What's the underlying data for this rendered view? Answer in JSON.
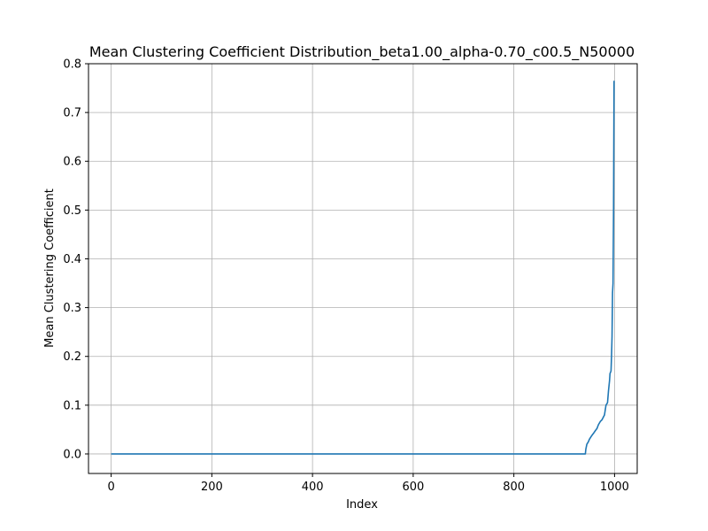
{
  "chart_data": {
    "type": "line",
    "title": "Mean Clustering Coefficient Distribution_beta1.00_alpha-0.70_c00.5_N50000",
    "xlabel": "Index",
    "ylabel": "Mean Clustering Coefficient",
    "xlim": [
      -45,
      1045
    ],
    "ylim": [
      -0.04,
      0.8
    ],
    "xticks": [
      0,
      200,
      400,
      600,
      800,
      1000
    ],
    "yticks": [
      0.0,
      0.1,
      0.2,
      0.3,
      0.4,
      0.5,
      0.6,
      0.7,
      0.8
    ],
    "xtick_labels": [
      "0",
      "200",
      "400",
      "600",
      "800",
      "1000"
    ],
    "ytick_labels": [
      "0.0",
      "0.1",
      "0.2",
      "0.3",
      "0.4",
      "0.5",
      "0.6",
      "0.7",
      "0.8"
    ],
    "grid": true,
    "line_color": "#1f77b4",
    "series": [
      {
        "x": [
          0,
          942,
          943,
          945,
          948,
          950,
          953,
          955,
          958,
          962,
          965,
          968,
          972,
          975,
          980,
          983,
          986,
          988,
          990,
          991,
          993,
          994,
          995,
          996,
          997,
          998,
          999
        ],
        "y": [
          0.0,
          0.0,
          0.01,
          0.02,
          0.025,
          0.03,
          0.035,
          0.038,
          0.042,
          0.048,
          0.052,
          0.06,
          0.067,
          0.07,
          0.08,
          0.1,
          0.105,
          0.13,
          0.15,
          0.165,
          0.17,
          0.2,
          0.24,
          0.33,
          0.35,
          0.5,
          0.765
        ]
      }
    ]
  }
}
